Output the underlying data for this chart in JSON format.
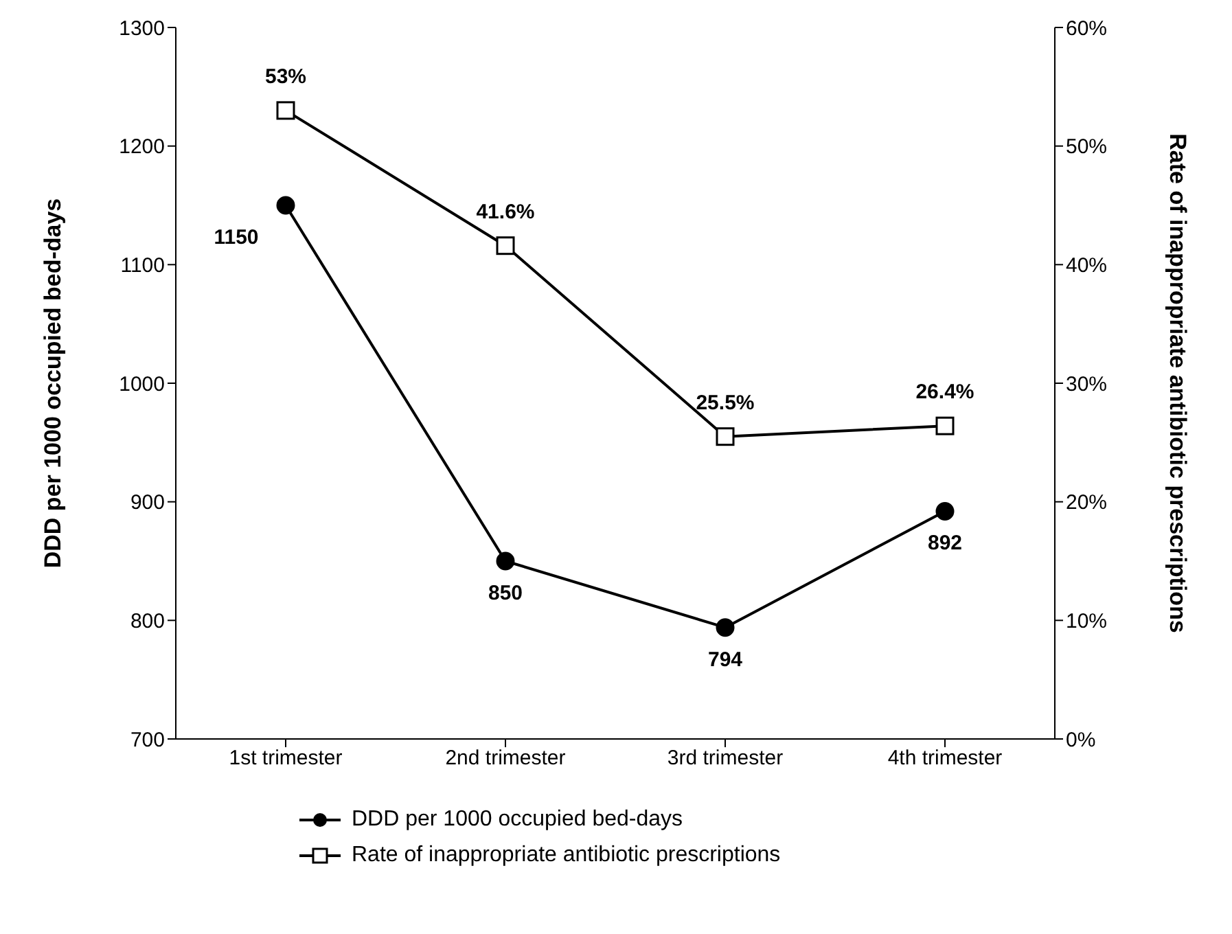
{
  "chart_data": {
    "type": "line",
    "categories": [
      "1st trimester",
      "2nd trimester",
      "3rd trimester",
      "4th trimester"
    ],
    "ylabel": "DDD per 1000 occupied bed-days",
    "y2label": "Rate of inappropriate antibiotic prescriptions",
    "ylim": [
      700,
      1300
    ],
    "yticks": [
      700,
      800,
      900,
      1000,
      1100,
      1200,
      1300
    ],
    "y2lim": [
      0,
      60
    ],
    "y2ticks": [
      {
        "value": 0,
        "label": "0%"
      },
      {
        "value": 10,
        "label": "10%"
      },
      {
        "value": 20,
        "label": "20%"
      },
      {
        "value": 30,
        "label": "30%"
      },
      {
        "value": 40,
        "label": "40%"
      },
      {
        "value": 50,
        "label": "50%"
      },
      {
        "value": 60,
        "label": "60%"
      }
    ],
    "series": [
      {
        "name": "DDD per 1000 occupied bed-days",
        "color": "#000000",
        "values": [
          1150,
          850,
          794,
          892
        ],
        "marker": "circle",
        "value_labels": [
          "1150",
          "850",
          "794",
          "892"
        ]
      },
      {
        "name": "Rate of inappropriate antibiotic prescriptions",
        "color": "#000000",
        "values": [
          53,
          41.6,
          25.5,
          26.4
        ],
        "marker": "square",
        "axis": "y2",
        "value_labels": [
          "53%",
          "41.6%",
          "25.5%",
          "26.4%"
        ]
      }
    ],
    "grid": false,
    "legend": "bottom",
    "line_style": "solid"
  }
}
